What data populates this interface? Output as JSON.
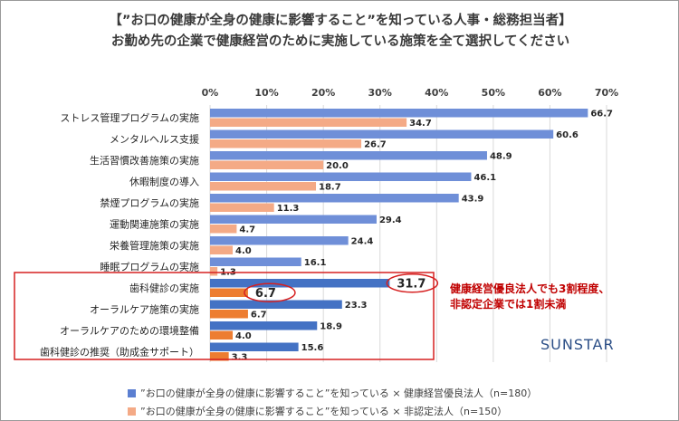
{
  "title_line1": "【”お口の健康が全身の健康に影響すること”を知っている人事・総務担当者】",
  "title_line2": "お勤め先の企業で健康経営のために実施している施策を全て選択してください",
  "annotation": {
    "line1": "健康経営優良法人でも3割程度、",
    "line2": "非認定企業では1割未満",
    "color": "#c00000"
  },
  "logo_text": "SUNSTAR",
  "chart_data": {
    "type": "bar",
    "orientation": "horizontal",
    "categories": [
      "ストレス管理プログラムの実施",
      "メンタルヘルス支援",
      "生活習慣改善施策の実施",
      "休暇制度の導入",
      "禁煙プログラムの実施",
      "運動関連施策の実施",
      "栄養管理施策の実施",
      "睡眠プログラムの実施",
      "歯科健診の実施",
      "オーラルケア施策の実施",
      "オーラルケアのための環境整備",
      "歯科健診の推奨（助成金サポート）"
    ],
    "series": [
      {
        "name": "”お口の健康が全身の健康に影響すること”を知っている × 健康経営優良法人（n=180）",
        "color": "#6f8fd8",
        "values": [
          66.7,
          60.6,
          48.9,
          46.1,
          43.9,
          29.4,
          24.4,
          16.1,
          31.7,
          23.3,
          18.9,
          15.6
        ]
      },
      {
        "name": "”お口の健康が全身の健康に影響すること”を知っている × 非認定法人（n=150）",
        "color": "#f4aa86",
        "values": [
          34.7,
          26.7,
          20.0,
          18.7,
          11.3,
          4.7,
          4.0,
          1.3,
          6.7,
          6.7,
          4.0,
          3.3
        ]
      }
    ],
    "value_labels": [
      [
        "66.7",
        "60.6",
        "48.9",
        "46.1",
        "43.9",
        "29.4",
        "24.4",
        "16.1",
        "31.7",
        "23.3",
        "18.9",
        "15.6"
      ],
      [
        "34.7",
        "26.7",
        "20.0",
        "18.7",
        "11.3",
        "4.7",
        "4.0",
        "1.3",
        "6.7",
        "6.7",
        "4.0",
        "3.3"
      ]
    ],
    "xlim": [
      0,
      70
    ],
    "xticks": [
      "0%",
      "10%",
      "20%",
      "30%",
      "40%",
      "50%",
      "60%",
      "70%"
    ],
    "grid": true,
    "highlight_group": [
      8,
      9,
      10,
      11
    ],
    "highlight_colors": {
      "series0": "#4472c4",
      "series1": "#ed7d31",
      "frame": "#d62020"
    },
    "legend_position": "bottom"
  }
}
